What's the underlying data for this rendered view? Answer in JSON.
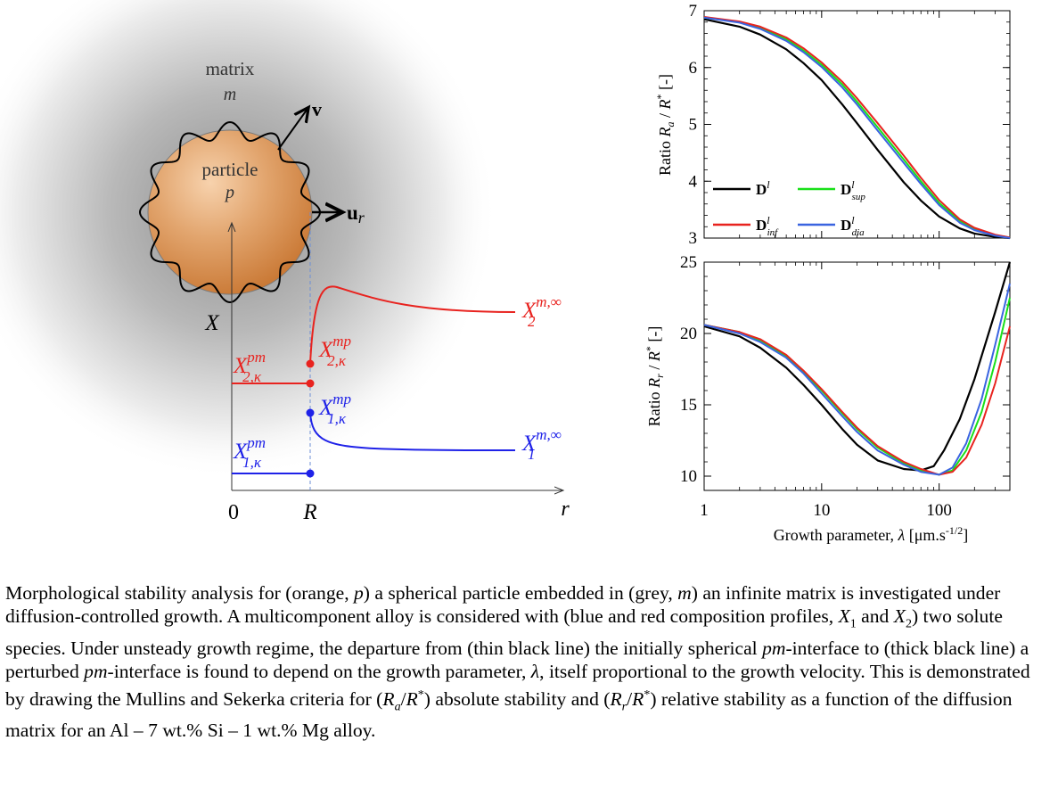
{
  "schematic": {
    "matrix_label": "matrix",
    "matrix_symbol": "m",
    "particle_label": "particle",
    "particle_symbol": "p",
    "velocity_label": "v",
    "normal_label": "u",
    "normal_sub": "r",
    "y_axis_label": "X",
    "x_axis_label": "r",
    "origin_label": "0",
    "radius_label": "R",
    "colors": {
      "red": "#e8231f",
      "blue": "#1f22e8",
      "particle": "#d9894a",
      "matrix_grey": "#9a9a9a"
    },
    "composition_labels": {
      "x2_pm": {
        "base": "X",
        "sup": "pm",
        "sub": "2,κ"
      },
      "x2_mp": {
        "base": "X",
        "sup": "mp",
        "sub": "2,κ"
      },
      "x2_inf": {
        "base": "X",
        "sup": "m,∞",
        "sub": "2"
      },
      "x1_pm": {
        "base": "X",
        "sup": "pm",
        "sub": "1,κ"
      },
      "x1_mp": {
        "base": "X",
        "sup": "mp",
        "sub": "1,κ"
      },
      "x1_inf": {
        "base": "X",
        "sup": "m,∞",
        "sub": "1"
      }
    }
  },
  "chart_data": [
    {
      "type": "line",
      "panel": "top",
      "ylabel": "Ratio R_a / R* [-]",
      "ylabel_parts": [
        "Ratio ",
        "R",
        "a",
        " / ",
        "R",
        "*",
        " [-]"
      ],
      "xscale": "log",
      "xlim": [
        1,
        400
      ],
      "ylim": [
        3,
        7
      ],
      "yticks": [
        "3",
        "4",
        "5",
        "6",
        "7"
      ],
      "legend_placement": "lower-left",
      "series": [
        {
          "name": "D^l",
          "legend": {
            "base": "D",
            "sup": "l",
            "sub": ""
          },
          "color": "#000000",
          "x": [
            1,
            2,
            3,
            5,
            7,
            10,
            15,
            20,
            30,
            50,
            70,
            100,
            150,
            200,
            300,
            400
          ],
          "y": [
            6.85,
            6.72,
            6.58,
            6.32,
            6.08,
            5.78,
            5.35,
            5.02,
            4.55,
            3.98,
            3.66,
            3.38,
            3.17,
            3.08,
            3.02,
            3.0
          ]
        },
        {
          "name": "D^l_sup",
          "legend": {
            "base": "D",
            "sup": "l",
            "sub": "sup"
          },
          "color": "#19e019",
          "x": [
            1,
            2,
            3,
            5,
            7,
            10,
            15,
            20,
            30,
            50,
            70,
            100,
            150,
            200,
            300,
            400
          ],
          "y": [
            6.88,
            6.8,
            6.7,
            6.5,
            6.3,
            6.05,
            5.7,
            5.4,
            4.95,
            4.38,
            4.0,
            3.62,
            3.3,
            3.16,
            3.05,
            3.01
          ]
        },
        {
          "name": "D^l_inf",
          "legend": {
            "base": "D",
            "sup": "l",
            "sub": "inf"
          },
          "color": "#e8231f",
          "x": [
            1,
            2,
            3,
            5,
            7,
            10,
            15,
            20,
            30,
            50,
            70,
            100,
            150,
            200,
            300,
            400
          ],
          "y": [
            6.89,
            6.81,
            6.72,
            6.53,
            6.34,
            6.09,
            5.75,
            5.46,
            5.02,
            4.45,
            4.06,
            3.67,
            3.33,
            3.18,
            3.06,
            3.01
          ]
        },
        {
          "name": "D^l_dia",
          "legend": {
            "base": "D",
            "sup": "l",
            "sub": "dia"
          },
          "color": "#3a64e0",
          "x": [
            1,
            2,
            3,
            5,
            7,
            10,
            15,
            20,
            30,
            50,
            70,
            100,
            150,
            200,
            300,
            400
          ],
          "y": [
            6.88,
            6.79,
            6.68,
            6.47,
            6.27,
            6.01,
            5.65,
            5.35,
            4.89,
            4.32,
            3.95,
            3.58,
            3.27,
            3.14,
            3.04,
            3.0
          ]
        }
      ]
    },
    {
      "type": "line",
      "panel": "bottom",
      "ylabel": "Ratio R_r / R* [-]",
      "ylabel_parts": [
        "Ratio ",
        "R",
        "r",
        " / ",
        "R",
        "*",
        " [-]"
      ],
      "xlabel": "Growth parameter, λ [μm.s^-1/2]",
      "xlabel_parts": [
        "Growth parameter, ",
        "λ",
        " [μm.s",
        "-1/2",
        "]"
      ],
      "xscale": "log",
      "xlim": [
        1,
        400
      ],
      "ylim": [
        9,
        25
      ],
      "yticks": [
        "10",
        "15",
        "20",
        "25"
      ],
      "xticks": [
        "1",
        "10",
        "100"
      ],
      "series": [
        {
          "name": "D^l",
          "color": "#000000",
          "x": [
            1,
            2,
            3,
            5,
            7,
            10,
            15,
            20,
            30,
            50,
            70,
            90,
            110,
            150,
            200,
            300,
            400
          ],
          "y": [
            20.5,
            19.8,
            19.0,
            17.6,
            16.4,
            15.0,
            13.3,
            12.2,
            11.1,
            10.5,
            10.4,
            10.7,
            11.8,
            14.0,
            16.8,
            21.5,
            25.0
          ]
        },
        {
          "name": "D^l_sup",
          "color": "#19e019",
          "x": [
            1,
            2,
            3,
            5,
            7,
            10,
            15,
            20,
            30,
            50,
            70,
            100,
            130,
            170,
            230,
            300,
            400
          ],
          "y": [
            20.6,
            20.1,
            19.5,
            18.4,
            17.3,
            16.0,
            14.4,
            13.3,
            12.0,
            10.9,
            10.4,
            10.1,
            10.4,
            11.8,
            14.5,
            18.0,
            22.5
          ]
        },
        {
          "name": "D^l_inf",
          "color": "#e8231f",
          "x": [
            1,
            2,
            3,
            5,
            7,
            10,
            15,
            20,
            30,
            50,
            70,
            100,
            130,
            170,
            230,
            300,
            400
          ],
          "y": [
            20.6,
            20.1,
            19.6,
            18.5,
            17.4,
            16.1,
            14.5,
            13.4,
            12.1,
            11.0,
            10.5,
            10.1,
            10.3,
            11.3,
            13.6,
            16.5,
            20.5
          ]
        },
        {
          "name": "D^l_dia",
          "color": "#3a64e0",
          "x": [
            1,
            2,
            3,
            5,
            7,
            10,
            15,
            20,
            30,
            50,
            70,
            100,
            130,
            170,
            230,
            300,
            400
          ],
          "y": [
            20.6,
            20.0,
            19.4,
            18.3,
            17.2,
            15.8,
            14.2,
            13.1,
            11.8,
            10.8,
            10.3,
            10.1,
            10.6,
            12.3,
            15.4,
            19.2,
            23.5
          ]
        }
      ]
    }
  ],
  "caption": {
    "parts": [
      "Morphological stability analysis for (orange, ",
      "p",
      ") a spherical particle embedded in (grey, ",
      "m",
      ") an infinite matrix is investigated under diffusion-controlled growth. A multicomponent alloy is considered with (blue and red composition profiles, ",
      "X",
      "1",
      " and ",
      "X",
      "2",
      ") two solute species. Under unsteady growth regime, the departure from (thin black line) the initially spherical ",
      "pm",
      "-interface to (thick black line) a perturbed ",
      "pm",
      "-interface is found to depend on the growth parameter, ",
      "λ",
      ", itself proportional to the growth velocity. This is demonstrated by drawing the Mullins and Sekerka criteria for (",
      "R",
      "a",
      "/",
      "R",
      "*",
      ") absolute stability and (",
      "R",
      "r",
      "/",
      "R",
      "*",
      ") relative stability as a function of the diffusion matrix for an Al – 7 wt.% Si – 1 wt.% Mg alloy."
    ]
  }
}
